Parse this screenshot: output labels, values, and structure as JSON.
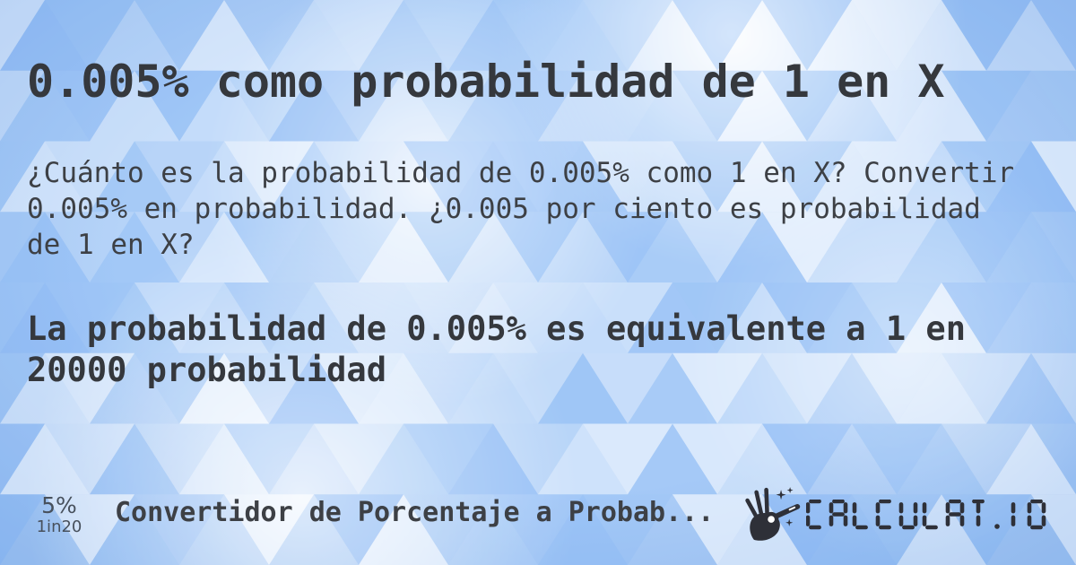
{
  "header": {
    "title": "0.005% como probabilidad de 1 en X"
  },
  "main": {
    "description_lines": [
      "¿Cuánto es la probabilidad de 0.005% como 1 en X? Convertir",
      "0.005% en probabilidad. ¿0.005 por ciento es probabilidad",
      "de 1 en X?"
    ],
    "answer_lines": [
      "La probabilidad de 0.005% es equivalente a 1 en",
      "20000 probabilidad"
    ]
  },
  "footer": {
    "percent_value": "5%",
    "odds_value": "1in20",
    "tool_name": "Convertidor de Porcentaje a Probab...",
    "brand": "CALCULAT.IO",
    "brand_icon": "magic-wand-hand-icon"
  },
  "colors": {
    "background_base": "#b0d0f8",
    "triangle_light": "#ffffff",
    "triangle_dark": "#66a3f2",
    "title_text": "#35383d",
    "body_text": "#3d4045",
    "footer_stats_text": "#47505c",
    "logo": "#2e3038"
  }
}
